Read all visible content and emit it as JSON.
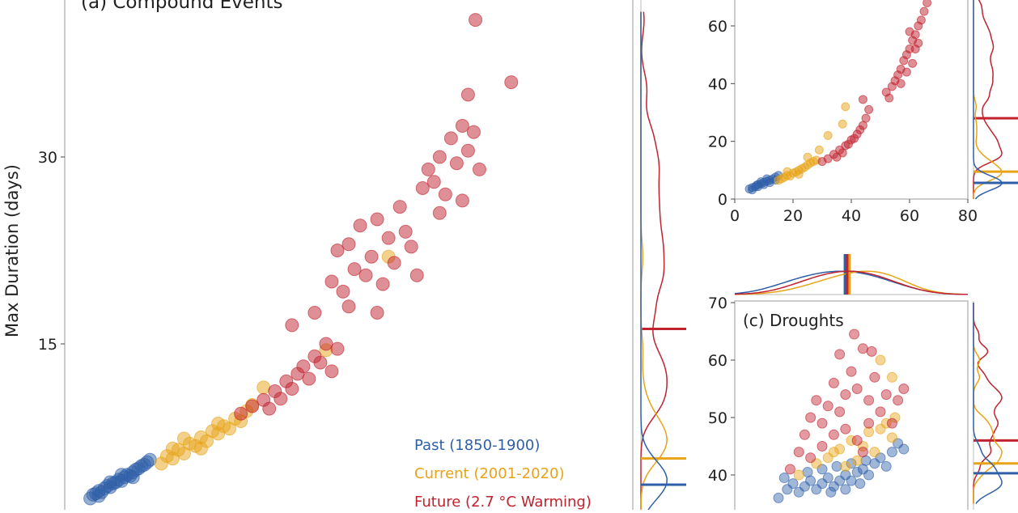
{
  "colors": {
    "past": "#2f5fa8",
    "current": "#e8a317",
    "future": "#c0222e",
    "axis": "#bbbbbb"
  },
  "legend": [
    "Past (1850-1900)",
    "Current (2001-2020)",
    "Future (2.7 °C Warming)"
  ],
  "chart_data": [
    {
      "type": "scatter",
      "title": "(a) Compound Events",
      "ylabel": "Max Duration (days)",
      "xlabel": "",
      "ytick_labels": [
        "30",
        "15"
      ],
      "yticks": [
        30,
        15
      ],
      "ylim": [
        0,
        42
      ],
      "xlim": [
        0,
        100
      ],
      "marginal_lines": {
        "past": 3.7,
        "current": 5.8,
        "future": 16.2
      },
      "series": [
        {
          "name": "Past (1850-1900)",
          "key": "past",
          "points": [
            [
              4.5,
              2.6
            ],
            [
              5,
              2.9
            ],
            [
              5.5,
              3.0
            ],
            [
              6,
              3.2
            ],
            [
              6.5,
              3.1
            ],
            [
              7,
              3.4
            ],
            [
              7.5,
              3.6
            ],
            [
              8,
              3.5
            ],
            [
              8.5,
              3.8
            ],
            [
              9,
              3.9
            ],
            [
              9.5,
              4.1
            ],
            [
              10,
              4.0
            ],
            [
              10.5,
              4.3
            ],
            [
              11,
              4.5
            ],
            [
              11.5,
              4.4
            ],
            [
              12,
              4.7
            ],
            [
              12.5,
              4.9
            ],
            [
              13,
              5.0
            ],
            [
              13.5,
              5.2
            ],
            [
              14,
              5.3
            ],
            [
              14.5,
              5.5
            ],
            [
              15,
              5.7
            ],
            [
              6,
              2.8
            ],
            [
              8,
              3.9
            ],
            [
              10,
              4.5
            ],
            [
              12,
              4.3
            ]
          ]
        },
        {
          "name": "Current (2001-2020)",
          "key": "current",
          "points": [
            [
              17,
              5.4
            ],
            [
              18,
              6.0
            ],
            [
              19,
              5.8
            ],
            [
              20,
              6.5
            ],
            [
              21,
              6.2
            ],
            [
              22,
              7.0
            ],
            [
              23,
              6.8
            ],
            [
              24,
              7.5
            ],
            [
              25,
              7.2
            ],
            [
              26,
              8.0
            ],
            [
              27,
              7.8
            ],
            [
              28,
              8.4
            ],
            [
              29,
              8.2
            ],
            [
              30,
              9.0
            ],
            [
              31,
              8.8
            ],
            [
              32,
              9.6
            ],
            [
              33,
              10.1
            ],
            [
              21,
              7.4
            ],
            [
              24,
              6.6
            ],
            [
              27,
              8.6
            ],
            [
              19,
              6.6
            ],
            [
              35,
              11.5
            ],
            [
              46,
              14.5
            ],
            [
              57,
              22.0
            ]
          ]
        },
        {
          "name": "Future (2.7 °C Warming)",
          "key": "future",
          "points": [
            [
              31,
              9.4
            ],
            [
              33,
              10.0
            ],
            [
              35,
              10.5
            ],
            [
              36,
              9.8
            ],
            [
              37,
              11.2
            ],
            [
              38,
              10.6
            ],
            [
              39,
              12.0
            ],
            [
              40,
              11.4
            ],
            [
              41,
              12.6
            ],
            [
              42,
              13.2
            ],
            [
              43,
              12.2
            ],
            [
              44,
              14.0
            ],
            [
              45,
              13.5
            ],
            [
              46,
              15.0
            ],
            [
              47,
              12.8
            ],
            [
              48,
              14.6
            ],
            [
              40,
              16.5
            ],
            [
              44,
              17.5
            ],
            [
              47,
              20.0
            ],
            [
              48,
              22.5
            ],
            [
              49,
              19.2
            ],
            [
              50,
              23.0
            ],
            [
              51,
              21.0
            ],
            [
              52,
              24.5
            ],
            [
              53,
              20.5
            ],
            [
              54,
              22.0
            ],
            [
              55,
              25.0
            ],
            [
              56,
              19.8
            ],
            [
              57,
              23.5
            ],
            [
              58,
              21.5
            ],
            [
              59,
              26.0
            ],
            [
              60,
              24.0
            ],
            [
              61,
              22.8
            ],
            [
              50,
              18.0
            ],
            [
              55,
              17.5
            ],
            [
              62,
              20.5
            ],
            [
              63,
              27.5
            ],
            [
              64,
              29.0
            ],
            [
              65,
              28.0
            ],
            [
              66,
              30.0
            ],
            [
              67,
              27.0
            ],
            [
              68,
              31.5
            ],
            [
              69,
              29.5
            ],
            [
              70,
              32.5
            ],
            [
              71,
              30.5
            ],
            [
              72,
              32.0
            ],
            [
              73,
              29.0
            ],
            [
              66,
              25.5
            ],
            [
              70,
              26.5
            ],
            [
              71,
              35.0
            ],
            [
              78.6,
              36.0
            ],
            [
              72.3,
              41.0
            ]
          ]
        }
      ]
    },
    {
      "type": "scatter",
      "title": "",
      "xlim": [
        0,
        80
      ],
      "ylim": [
        0,
        70
      ],
      "xticks": [
        0,
        20,
        40,
        60,
        80
      ],
      "xtick_labels": [
        "0",
        "20",
        "40",
        "60",
        "80"
      ],
      "yticks": [
        0,
        20,
        40,
        60
      ],
      "ytick_labels": [
        "0",
        "20",
        "40",
        "60"
      ],
      "marginal_lines": {
        "past": 5.6,
        "current": 9.5,
        "future": 28
      },
      "series": [
        {
          "name": "Past (1850-1900)",
          "key": "past",
          "points": [
            [
              5,
              3.5
            ],
            [
              6,
              4.0
            ],
            [
              7,
              4.2
            ],
            [
              7.5,
              4.8
            ],
            [
              8,
              5.0
            ],
            [
              9,
              5.3
            ],
            [
              10,
              5.8
            ],
            [
              11,
              6.2
            ],
            [
              12,
              6.5
            ],
            [
              13,
              7.0
            ],
            [
              14,
              7.6
            ],
            [
              15,
              8.2
            ],
            [
              6,
              3.2
            ],
            [
              8,
              4.3
            ],
            [
              10,
              5.0
            ],
            [
              12,
              5.7
            ],
            [
              14,
              6.6
            ],
            [
              9,
              6.0
            ],
            [
              11,
              7.0
            ]
          ]
        },
        {
          "name": "Current (2001-2020)",
          "key": "current",
          "points": [
            [
              15,
              6.5
            ],
            [
              16,
              7.0
            ],
            [
              17,
              7.5
            ],
            [
              18,
              8.2
            ],
            [
              19,
              8.0
            ],
            [
              20,
              9.0
            ],
            [
              21,
              9.4
            ],
            [
              22,
              10.0
            ],
            [
              23,
              10.5
            ],
            [
              24,
              11.0
            ],
            [
              25,
              11.8
            ],
            [
              26,
              12.5
            ],
            [
              27,
              13.0
            ],
            [
              28,
              13.5
            ],
            [
              18,
              9.5
            ],
            [
              22,
              8.6
            ],
            [
              25,
              14.5
            ],
            [
              29,
              17.0
            ],
            [
              32,
              22.0
            ],
            [
              37,
              26.0
            ],
            [
              38,
              32.0
            ]
          ]
        },
        {
          "name": "Future (2.7 °C Warming)",
          "key": "future",
          "points": [
            [
              30,
              13.0
            ],
            [
              32,
              14.0
            ],
            [
              34,
              15.5
            ],
            [
              35,
              14.5
            ],
            [
              36,
              17.0
            ],
            [
              37,
              16.0
            ],
            [
              38,
              18.5
            ],
            [
              39,
              19.0
            ],
            [
              40,
              20.5
            ],
            [
              41,
              21.0
            ],
            [
              42,
              22.5
            ],
            [
              43,
              24.0
            ],
            [
              44,
              25.5
            ],
            [
              45,
              28.0
            ],
            [
              46,
              31.0
            ],
            [
              44,
              34.5
            ],
            [
              52,
              37.0
            ],
            [
              53,
              35.0
            ],
            [
              54,
              39.0
            ],
            [
              55,
              41.0
            ],
            [
              56,
              43.0
            ],
            [
              57,
              45.0
            ],
            [
              58,
              48.0
            ],
            [
              59,
              50.0
            ],
            [
              60,
              52.0
            ],
            [
              61,
              55.0
            ],
            [
              62,
              57.0
            ],
            [
              63,
              60.0
            ],
            [
              64,
              62.0
            ],
            [
              65,
              65.0
            ],
            [
              66,
              68.0
            ],
            [
              59,
              44.0
            ],
            [
              61,
              47.0
            ],
            [
              57,
              40.0
            ],
            [
              62,
              52.0
            ],
            [
              63,
              54.0
            ],
            [
              60,
              58.0
            ]
          ]
        }
      ]
    },
    {
      "type": "scatter",
      "title": "(c) Droughts",
      "xlim": [
        0,
        80
      ],
      "ylim": [
        35,
        70
      ],
      "yticks": [
        70,
        60,
        50,
        40
      ],
      "ytick_labels": [
        "70",
        "60",
        "50",
        "40"
      ],
      "marginal_lines": {
        "past": 40.3,
        "current": 42,
        "future": 46
      },
      "top_marginal_lines": {
        "past": 37.8,
        "future": 38.6,
        "current": 39.4
      },
      "series": [
        {
          "name": "Past (1850-1900)",
          "key": "past",
          "points": [
            [
              15,
              36.0
            ],
            [
              18,
              37.5
            ],
            [
              20,
              38.5
            ],
            [
              22,
              37.0
            ],
            [
              24,
              38.0
            ],
            [
              26,
              39.0
            ],
            [
              28,
              37.5
            ],
            [
              30,
              38.5
            ],
            [
              32,
              39.5
            ],
            [
              34,
              38.0
            ],
            [
              36,
              39.0
            ],
            [
              38,
              40.0
            ],
            [
              40,
              39.0
            ],
            [
              42,
              40.5
            ],
            [
              44,
              41.0
            ],
            [
              46,
              40.0
            ],
            [
              48,
              42.0
            ],
            [
              50,
              43.0
            ],
            [
              52,
              41.5
            ],
            [
              54,
              44.0
            ],
            [
              56,
              45.5
            ],
            [
              58,
              44.5
            ],
            [
              25,
              40.5
            ],
            [
              30,
              41.0
            ],
            [
              35,
              41.5
            ],
            [
              40,
              42.0
            ],
            [
              45,
              42.5
            ],
            [
              33,
              37.0
            ],
            [
              38,
              37.5
            ],
            [
              43,
              38.5
            ],
            [
              17,
              39.5
            ]
          ]
        },
        {
          "name": "Current (2001-2020)",
          "key": "current",
          "points": [
            [
              22,
              40.0
            ],
            [
              28,
              42.0
            ],
            [
              32,
              43.0
            ],
            [
              36,
              44.5
            ],
            [
              40,
              46.0
            ],
            [
              44,
              45.0
            ],
            [
              46,
              47.5
            ],
            [
              48,
              44.0
            ],
            [
              50,
              48.0
            ],
            [
              52,
              49.0
            ],
            [
              54,
              46.5
            ],
            [
              42,
              42.5
            ],
            [
              38,
              41.5
            ],
            [
              34,
              44.0
            ],
            [
              50,
              60.0
            ],
            [
              54,
              57.0
            ],
            [
              55,
              50.0
            ]
          ]
        },
        {
          "name": "Future (2.7 °C Warming)",
          "key": "future",
          "points": [
            [
              19,
              41.0
            ],
            [
              22,
              44.0
            ],
            [
              24,
              47.0
            ],
            [
              26,
              50.0
            ],
            [
              28,
              53.0
            ],
            [
              30,
              49.0
            ],
            [
              32,
              52.0
            ],
            [
              34,
              56.0
            ],
            [
              36,
              51.0
            ],
            [
              38,
              54.0
            ],
            [
              40,
              58.0
            ],
            [
              42,
              55.0
            ],
            [
              44,
              62.0
            ],
            [
              46,
              53.0
            ],
            [
              48,
              57.0
            ],
            [
              50,
              51.0
            ],
            [
              52,
              54.0
            ],
            [
              54,
              49.0
            ],
            [
              56,
              53.0
            ],
            [
              58,
              55.0
            ],
            [
              30,
              45.0
            ],
            [
              34,
              47.0
            ],
            [
              38,
              48.0
            ],
            [
              42,
              46.0
            ],
            [
              46,
              49.0
            ],
            [
              36,
              61.0
            ],
            [
              41,
              64.5
            ],
            [
              47,
              61.5
            ],
            [
              26,
              43.0
            ],
            [
              44,
              44.0
            ]
          ]
        }
      ]
    }
  ]
}
